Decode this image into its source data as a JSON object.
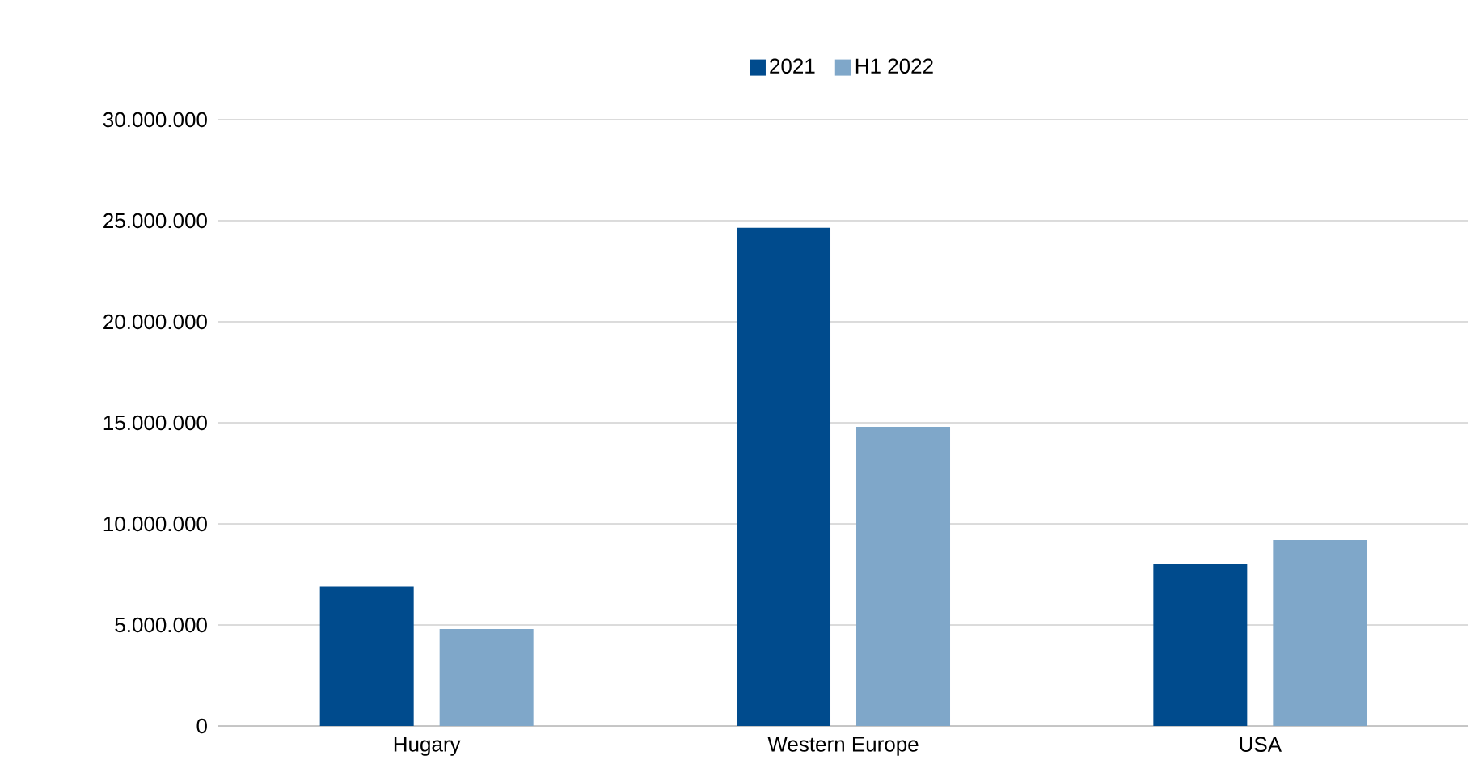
{
  "chart_data": {
    "type": "bar",
    "categories": [
      "Hugary",
      "Western Europe",
      "USA"
    ],
    "series": [
      {
        "name": "2021",
        "color": "#004b8d",
        "values": [
          6900000,
          24650000,
          8000000
        ]
      },
      {
        "name": "H1 2022",
        "color": "#7fa7c9",
        "values": [
          4800000,
          14800000,
          9200000
        ]
      }
    ],
    "ylim": [
      0,
      30000000
    ],
    "yticks": [
      0,
      {
        "value": 5000000,
        "label": "5.000.000"
      },
      {
        "value": 10000000,
        "label": "10.000.000"
      },
      {
        "value": 15000000,
        "label": "15.000.000"
      },
      {
        "value": 20000000,
        "label": "20.000.000"
      },
      {
        "value": 25000000,
        "label": "25.000.000"
      },
      {
        "value": 30000000,
        "label": "30.000.000"
      }
    ],
    "grid": "y",
    "legend": "top"
  }
}
